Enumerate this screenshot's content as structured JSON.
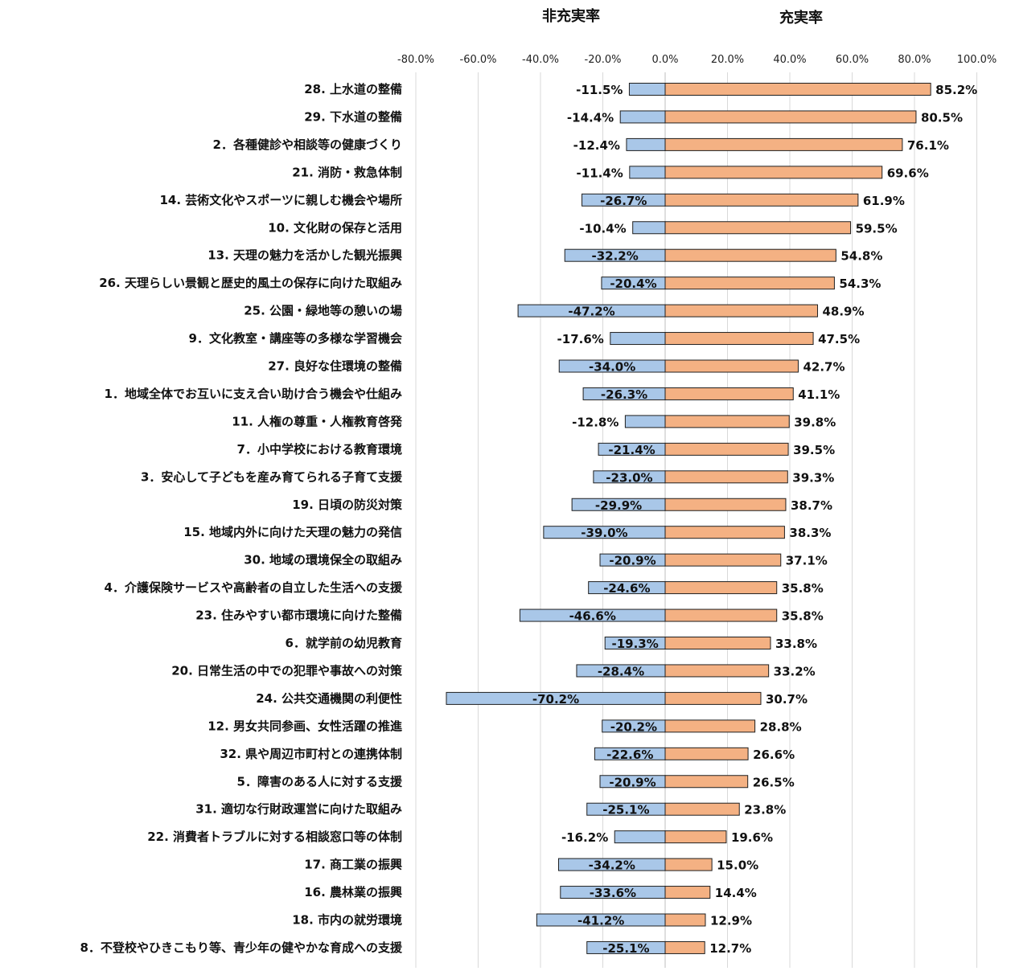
{
  "chart_data": {
    "type": "bar",
    "orientation": "horizontal",
    "legend_headers": {
      "negative": "非充実率",
      "positive": "充実率"
    },
    "xlim": [
      -80,
      100
    ],
    "x_ticks": [
      "-80.0%",
      "-60.0%",
      "-40.0%",
      "-20.0%",
      "0.0%",
      "20.0%",
      "40.0%",
      "60.0%",
      "80.0%",
      "100.0%"
    ],
    "grid": true,
    "colors": {
      "negative": "#a9c7e8",
      "positive": "#f4b183",
      "bar_border": "#1f1f1f",
      "grid": "#d9d9d9"
    },
    "categories": [
      "28. 上水道の整備",
      "29. 下水道の整備",
      "2．各種健診や相談等の健康づくり",
      "21. 消防・救急体制",
      "14. 芸術文化やスポーツに親しむ機会や場所",
      "10. 文化財の保存と活用",
      "13. 天理の魅力を活かした観光振興",
      "26. 天理らしい景観と歴史的風土の保存に向けた取組み",
      "25. 公園・緑地等の憩いの場",
      "9．文化教室・講座等の多様な学習機会",
      "27. 良好な住環境の整備",
      "1．地域全体でお互いに支え合い助け合う機会や仕組み",
      "11. 人権の尊重・人権教育啓発",
      "7．小中学校における教育環境",
      "3．安心して子どもを産み育てられる子育て支援",
      "19. 日頃の防災対策",
      "15. 地域内外に向けた天理の魅力の発信",
      "30. 地域の環境保全の取組み",
      "4．介護保険サービスや高齢者の自立した生活への支援",
      "23. 住みやすい都市環境に向けた整備",
      "6．就学前の幼児教育",
      "20. 日常生活の中での犯罪や事故への対策",
      "24. 公共交通機関の利便性",
      "12. 男女共同参画、女性活躍の推進",
      "32. 県や周辺市町村との連携体制",
      "5．障害のある人に対する支援",
      "31. 適切な行財政運営に向けた取組み",
      "22. 消費者トラブルに対する相談窓口等の体制",
      "17. 商工業の振興",
      "16. 農林業の振興",
      "18. 市内の就労環境",
      "8．不登校やひきこもり等、青少年の健やかな育成への支援"
    ],
    "series": [
      {
        "name": "非充実率",
        "values": [
          -11.5,
          -14.4,
          -12.4,
          -11.4,
          -26.7,
          -10.4,
          -32.2,
          -20.4,
          -47.2,
          -17.6,
          -34.0,
          -26.3,
          -12.8,
          -21.4,
          -23.0,
          -29.9,
          -39.0,
          -20.9,
          -24.6,
          -46.6,
          -19.3,
          -28.4,
          -70.2,
          -20.2,
          -22.6,
          -20.9,
          -25.1,
          -16.2,
          -34.2,
          -33.6,
          -41.2,
          -25.1
        ],
        "labels": [
          "-11.5%",
          "-14.4%",
          "-12.4%",
          "-11.4%",
          "-26.7%",
          "-10.4%",
          "-32.2%",
          "-20.4%",
          "-47.2%",
          "-17.6%",
          "-34.0%",
          "-26.3%",
          "-12.8%",
          "-21.4%",
          "-23.0%",
          "-29.9%",
          "-39.0%",
          "-20.9%",
          "-24.6%",
          "-46.6%",
          "-19.3%",
          "-28.4%",
          "-70.2%",
          "-20.2%",
          "-22.6%",
          "-20.9%",
          "-25.1%",
          "-16.2%",
          "-34.2%",
          "-33.6%",
          "-41.2%",
          "-25.1%"
        ]
      },
      {
        "name": "充実率",
        "values": [
          85.2,
          80.5,
          76.1,
          69.6,
          61.9,
          59.5,
          54.8,
          54.3,
          48.9,
          47.5,
          42.7,
          41.1,
          39.8,
          39.5,
          39.3,
          38.7,
          38.3,
          37.1,
          35.8,
          35.8,
          33.8,
          33.2,
          30.7,
          28.8,
          26.6,
          26.5,
          23.8,
          19.6,
          15.0,
          14.4,
          12.9,
          12.7
        ],
        "labels": [
          "85.2%",
          "80.5%",
          "76.1%",
          "69.6%",
          "61.9%",
          "59.5%",
          "54.8%",
          "54.3%",
          "48.9%",
          "47.5%",
          "42.7%",
          "41.1%",
          "39.8%",
          "39.5%",
          "39.3%",
          "38.7%",
          "38.3%",
          "37.1%",
          "35.8%",
          "35.8%",
          "33.8%",
          "33.2%",
          "30.7%",
          "28.8%",
          "26.6%",
          "26.5%",
          "23.8%",
          "19.6%",
          "15.0%",
          "14.4%",
          "12.9%",
          "12.7%"
        ]
      }
    ]
  }
}
